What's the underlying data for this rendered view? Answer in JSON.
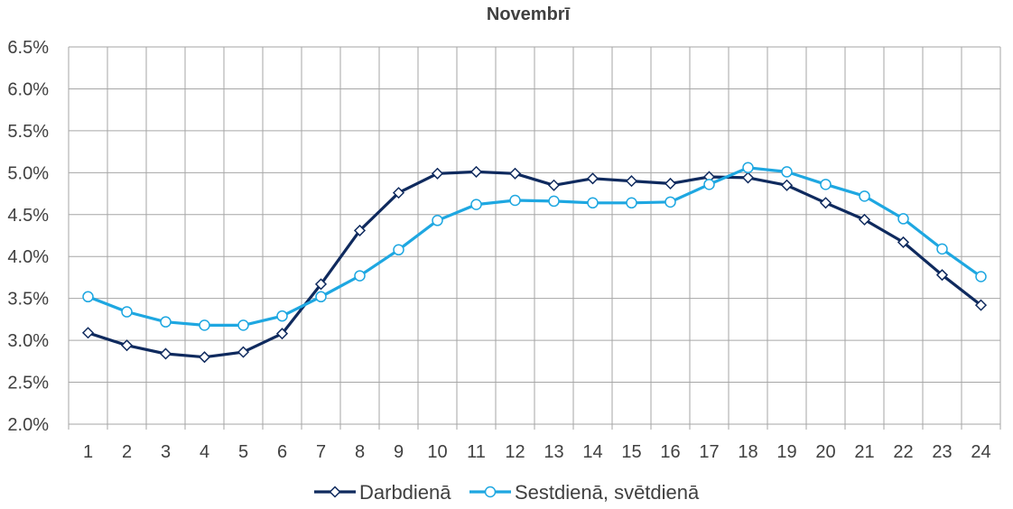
{
  "chart_data": {
    "type": "line",
    "title": "Novembrī",
    "xlabel": "",
    "ylabel": "",
    "categories": [
      "1",
      "2",
      "3",
      "4",
      "5",
      "6",
      "7",
      "8",
      "9",
      "10",
      "11",
      "12",
      "13",
      "14",
      "15",
      "16",
      "17",
      "18",
      "19",
      "20",
      "21",
      "22",
      "23",
      "24"
    ],
    "yticks": [
      "2.0%",
      "2.5%",
      "3.0%",
      "3.5%",
      "4.0%",
      "4.5%",
      "5.0%",
      "5.5%",
      "6.0%",
      "6.5%"
    ],
    "ylim": [
      2.0,
      6.5
    ],
    "grid": true,
    "legend_position": "bottom",
    "series": [
      {
        "name": "Darbdienā",
        "color": "#0f2a5e",
        "marker": "diamond",
        "values": [
          3.09,
          2.94,
          2.84,
          2.8,
          2.86,
          3.08,
          3.67,
          4.31,
          4.76,
          4.99,
          5.01,
          4.99,
          4.85,
          4.93,
          4.9,
          4.87,
          4.95,
          4.94,
          4.85,
          4.64,
          4.44,
          4.17,
          3.78,
          3.42
        ]
      },
      {
        "name": "Sestdienā, svētdienā",
        "color": "#1ea7e1",
        "marker": "circle",
        "values": [
          3.52,
          3.34,
          3.22,
          3.18,
          3.18,
          3.29,
          3.52,
          3.77,
          4.08,
          4.43,
          4.62,
          4.67,
          4.66,
          4.64,
          4.64,
          4.65,
          4.86,
          5.06,
          5.01,
          4.86,
          4.72,
          4.45,
          4.09,
          3.76
        ]
      }
    ]
  }
}
